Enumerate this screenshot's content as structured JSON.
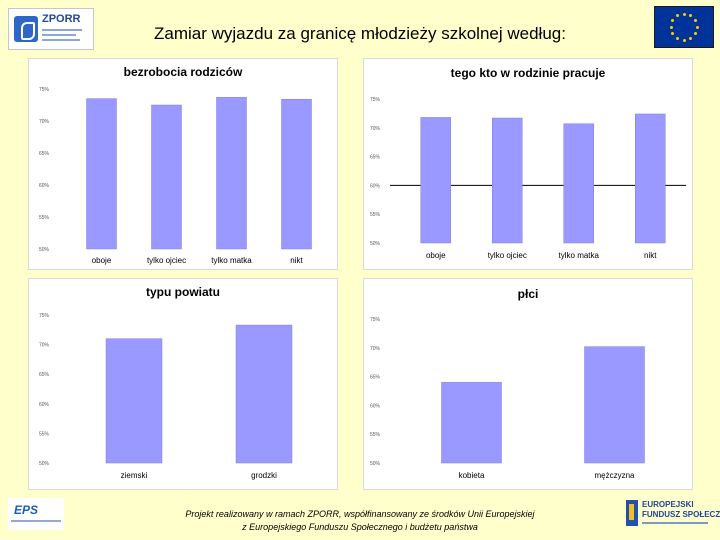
{
  "slide": {
    "title": "Zamiar wyjazdu za granicę młodzieży szkolnej według:",
    "footer_line1": "Projekt realizowany w ramach ZPORR, współfinansowany ze środków Unii Europejskiej",
    "footer_line2": "z Europejskiego Funduszu Społecznego i budżetu państwa",
    "logo_left_text": "ZPORR",
    "logo_right_text_1": "EUROPEJSKI",
    "logo_right_text_2": "FUNDUSZ SPOŁECZNY"
  },
  "colors": {
    "bar": "#9999ff",
    "bar_border": "#8080e0",
    "panel": "#ffffff",
    "slide_bg": "#ffffcc"
  },
  "chart_data": [
    {
      "type": "bar",
      "title": "bezrobocia rodziców",
      "categories": [
        "oboje",
        "tylko ojciec",
        "tylko matka",
        "nikt"
      ],
      "values": [
        73.5,
        72.5,
        73.7,
        73.4
      ],
      "yticks": [
        "75%",
        "70%",
        "65%",
        "60%",
        "55%",
        "50%"
      ],
      "ylim": [
        50,
        75
      ],
      "grid": false
    },
    {
      "type": "bar",
      "title": "tego kto w rodzinie pracuje",
      "categories": [
        "oboje",
        "tylko ojciec",
        "tylko matka",
        "nikt"
      ],
      "values": [
        71.8,
        71.7,
        70.7,
        72.4
      ],
      "yticks": [
        "75%",
        "70%",
        "65%",
        "60%",
        "55%",
        "50%"
      ],
      "ylim": [
        50,
        75
      ],
      "baseline_line_at": 60,
      "grid": false
    },
    {
      "type": "bar",
      "title": "typu powiatu",
      "categories": [
        "ziemski",
        "grodzki"
      ],
      "values": [
        71.0,
        73.3
      ],
      "yticks": [
        "75%",
        "70%",
        "65%",
        "60%",
        "55%",
        "50%"
      ],
      "ylim": [
        50,
        75
      ],
      "grid": false
    },
    {
      "type": "bar",
      "title": "płci",
      "categories": [
        "kobieta",
        "mężczyzna"
      ],
      "values": [
        64.0,
        70.2
      ],
      "yticks": [
        "75%",
        "70%",
        "65%",
        "60%",
        "55%",
        "50%"
      ],
      "ylim": [
        50,
        75
      ],
      "grid": false
    }
  ]
}
